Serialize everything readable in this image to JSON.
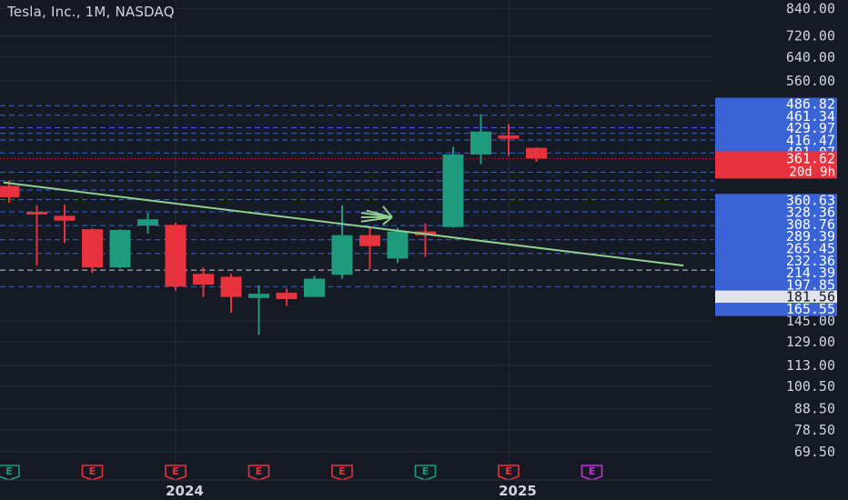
{
  "header": {
    "title": "Tesla, Inc., 1M, NASDAQ"
  },
  "colors": {
    "background": "#161a25",
    "grid": "#2a2e39",
    "up": "#1e9a7d",
    "down": "#e8323d",
    "trendline": "#8fd18f",
    "level_line": "#3a63d6",
    "current_badge": "#e8323d",
    "support_badge": "#e0e3eb",
    "axis_text": "#d1d4dc",
    "earnings_up": "#1e9a7d",
    "earnings_down": "#e8323d",
    "earnings_future": "#c832d4"
  },
  "chart_data": {
    "type": "candlestick",
    "y_scale": "log",
    "ylim": [
      66,
      860
    ],
    "y_ticks": [
      "840.00",
      "720.00",
      "640.00",
      "560.00",
      "145.00",
      "129.00",
      "113.00",
      "100.50",
      "88.50",
      "78.50",
      "69.50"
    ],
    "x_ticks": [
      {
        "label": "2024",
        "index": 6
      },
      {
        "label": "2025",
        "index": 18
      }
    ],
    "candles": [
      {
        "o": 310,
        "h": 320,
        "l": 282,
        "c": 291
      },
      {
        "o": 268,
        "h": 278,
        "l": 198,
        "c": 264
      },
      {
        "o": 262,
        "h": 279,
        "l": 225,
        "c": 255
      },
      {
        "o": 243,
        "h": 244,
        "l": 190,
        "c": 196
      },
      {
        "o": 196,
        "h": 243,
        "l": 195,
        "c": 242
      },
      {
        "o": 248,
        "h": 266,
        "l": 237,
        "c": 257
      },
      {
        "o": 249,
        "h": 252,
        "l": 172,
        "c": 176
      },
      {
        "o": 189,
        "h": 196,
        "l": 166,
        "c": 178
      },
      {
        "o": 186,
        "h": 189,
        "l": 152,
        "c": 166
      },
      {
        "o": 165,
        "h": 177,
        "l": 134,
        "c": 169
      },
      {
        "o": 170,
        "h": 174,
        "l": 158,
        "c": 164
      },
      {
        "o": 166,
        "h": 187,
        "l": 166,
        "c": 184
      },
      {
        "o": 188,
        "h": 278,
        "l": 184,
        "c": 235
      },
      {
        "o": 235,
        "h": 246,
        "l": 194,
        "c": 221
      },
      {
        "o": 206,
        "h": 245,
        "l": 201,
        "c": 240
      },
      {
        "o": 240,
        "h": 251,
        "l": 208,
        "c": 235
      },
      {
        "o": 246,
        "h": 386,
        "l": 245,
        "c": 370
      },
      {
        "o": 370,
        "h": 464,
        "l": 350,
        "c": 421
      },
      {
        "o": 412,
        "h": 439,
        "l": 367,
        "c": 404
      },
      {
        "o": 384,
        "h": 385,
        "l": 355,
        "c": 361.62
      }
    ],
    "trendline": {
      "from": {
        "index": -0.2,
        "price": 316
      },
      "to": {
        "index": 24.3,
        "price": 198
      }
    },
    "arrow": {
      "index": 13.8,
      "price": 260
    },
    "levels": [
      {
        "label": "486.82",
        "value": 486.82,
        "style": "blue"
      },
      {
        "label": "461.34",
        "value": 461.34,
        "style": "blue"
      },
      {
        "label": "429.97",
        "value": 429.97,
        "style": "blue"
      },
      {
        "label": "416.47",
        "value": 416.47,
        "style": "blue"
      },
      {
        "label": "401.07",
        "value": 401.07,
        "style": "blue"
      },
      {
        "label": "373.06",
        "value": 373.06,
        "style": "blue"
      },
      {
        "label": "360.63",
        "value": 335,
        "style": "blue"
      },
      {
        "label": "328.36",
        "value": 319,
        "style": "blue"
      },
      {
        "label": "308.76",
        "value": 303,
        "style": "blue"
      },
      {
        "label": "289.39",
        "value": 287,
        "style": "blue"
      },
      {
        "label": "265.45",
        "value": 268,
        "style": "blue"
      },
      {
        "label": "232.36",
        "value": 248,
        "style": "blue"
      },
      {
        "label": "214.39",
        "value": 229,
        "style": "blue"
      },
      {
        "label": "197.85",
        "value": 212,
        "style": "blue"
      },
      {
        "label": "181.56",
        "value": 193,
        "style": "white"
      },
      {
        "label": "165.55",
        "value": 176,
        "style": "blue"
      }
    ],
    "current": {
      "price": "361.62",
      "countdown": "20d 9h",
      "value": 361.62
    },
    "earnings": [
      {
        "label": "E",
        "index": 0,
        "kind": "up"
      },
      {
        "label": "E",
        "index": 3,
        "kind": "down"
      },
      {
        "label": "E",
        "index": 6,
        "kind": "down"
      },
      {
        "label": "E",
        "index": 9,
        "kind": "down"
      },
      {
        "label": "E",
        "index": 12,
        "kind": "down"
      },
      {
        "label": "E",
        "index": 15,
        "kind": "up"
      },
      {
        "label": "E",
        "index": 18,
        "kind": "down"
      },
      {
        "label": "E",
        "index": 21,
        "kind": "future"
      }
    ]
  }
}
